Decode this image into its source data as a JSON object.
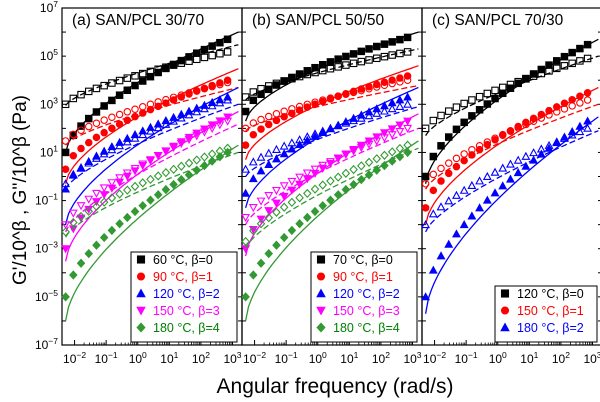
{
  "figure": {
    "ylabel": "G'/10^β , G''/10^β (Pa)",
    "xlabel": "Angular frequency (rad/s)"
  },
  "chart_data": [
    {
      "type": "scatter",
      "title": "(a) SAN/PCL 30/70",
      "xscale": "log",
      "yscale": "log",
      "xlim": [
        0.004,
        2000
      ],
      "ylim": [
        1e-07,
        10000000.0
      ],
      "yticks": [
        "10^-7",
        "10^-5",
        "10^-3",
        "10^-1",
        "10^1",
        "10^3",
        "10^5",
        "10^7"
      ],
      "xticks": [
        "10^-2",
        "10^-1",
        "10^0",
        "10^1",
        "10^2",
        "10^3"
      ],
      "legend_position": "lower-right",
      "series": [
        {
          "name": "60 °C, β=0",
          "label_color": "#000000",
          "color": "#000000",
          "marker": "square",
          "Gp_start": 10,
          "Gp_end": 500000,
          "Gpp_start": 1000,
          "Gpp_end": 150000,
          "fit_start": 10,
          "fit_end": 1000000,
          "fitpp_start": 900,
          "fitpp_end": 300000
        },
        {
          "name": "90 °C, β=1",
          "label_color": "#ff0000",
          "color": "#ff0000",
          "marker": "circle",
          "Gp_start": 2,
          "Gp_end": 10000,
          "Gpp_start": 30,
          "Gpp_end": 8000,
          "fit_start": 0.5,
          "fit_end": 30000,
          "fitpp_start": 20,
          "fitpp_end": 5000
        },
        {
          "name": "120 °C, β=2",
          "label_color": "#0000ff",
          "color": "#0000ff",
          "marker": "triangle-up",
          "Gp_start": 0.3,
          "Gp_end": 2000,
          "Gpp_start": 0.5,
          "Gpp_end": 1500,
          "fit_start": 0.01,
          "fit_end": 5000,
          "fitpp_start": 0.3,
          "fitpp_end": 1000
        },
        {
          "name": "150 °C, β=3",
          "label_color": "#ff00ff",
          "color": "#ff00ff",
          "marker": "triangle-down",
          "Gp_start": 0.001,
          "Gp_end": 300,
          "Gpp_start": 0.01,
          "Gpp_end": 200,
          "fit_start": 0.0003,
          "fit_end": 500,
          "fitpp_start": 0.005,
          "fitpp_end": 150
        },
        {
          "name": "180 °C, β=4",
          "label_color": "#008000",
          "color": "#339933",
          "marker": "diamond",
          "Gp_start": 1e-05,
          "Gp_end": 10,
          "Gpp_start": 0.005,
          "Gpp_end": 15,
          "fit_start": 1e-06,
          "fit_end": 20,
          "fitpp_start": 0.003,
          "fitpp_end": 10
        }
      ]
    },
    {
      "type": "scatter",
      "title": "(b) SAN/PCL 50/50",
      "xscale": "log",
      "yscale": "log",
      "xlim": [
        0.004,
        2000
      ],
      "ylim": [
        1e-07,
        10000000.0
      ],
      "xticks": [
        "10^-2",
        "10^-1",
        "10^0",
        "10^1",
        "10^2",
        "10^3"
      ],
      "legend_position": "lower-right",
      "series": [
        {
          "name": "70 °C, β=0",
          "label_color": "#000000",
          "color": "#000000",
          "marker": "square",
          "Gp_start": 500,
          "Gp_end": 600000,
          "Gpp_start": 2000,
          "Gpp_end": 150000,
          "fit_start": 200,
          "fit_end": 1000000,
          "fitpp_start": 1500,
          "fitpp_end": 200000
        },
        {
          "name": "90 °C, β=1",
          "label_color": "#ff0000",
          "color": "#ff0000",
          "marker": "circle",
          "Gp_start": 20,
          "Gp_end": 15000,
          "Gpp_start": 100,
          "Gpp_end": 10000,
          "fit_start": 5,
          "fit_end": 40000,
          "fitpp_start": 80,
          "fitpp_end": 6000
        },
        {
          "name": "120 °C, β=2",
          "label_color": "#0000ff",
          "color": "#0000ff",
          "marker": "triangle-up",
          "Gp_start": 0.2,
          "Gp_end": 2000,
          "Gpp_start": 2,
          "Gpp_end": 1000,
          "fit_start": 0.05,
          "fit_end": 5000,
          "fitpp_start": 1,
          "fitpp_end": 800
        },
        {
          "name": "150 °C, β=3",
          "label_color": "#ff00ff",
          "color": "#ff00ff",
          "marker": "triangle-down",
          "Gp_start": 0.001,
          "Gp_end": 200,
          "Gpp_start": 0.02,
          "Gpp_end": 100,
          "fit_start": 0.0005,
          "fit_end": 400,
          "fitpp_start": 0.01,
          "fitpp_end": 100
        },
        {
          "name": "180 °C, β=4",
          "label_color": "#008000",
          "color": "#339933",
          "marker": "diamond",
          "Gp_start": 1e-05,
          "Gp_end": 10,
          "Gpp_start": 0.002,
          "Gpp_end": 20,
          "fit_start": 1e-06,
          "fit_end": 30,
          "fitpp_start": 0.001,
          "fitpp_end": 15
        }
      ]
    },
    {
      "type": "scatter",
      "title": "(c) SAN/PCL 70/30",
      "xscale": "log",
      "yscale": "log",
      "xlim": [
        0.004,
        2000
      ],
      "ylim": [
        1e-07,
        10000000.0
      ],
      "xticks": [
        "10^-2",
        "10^-1",
        "10^0",
        "10^1",
        "10^2",
        "10^3"
      ],
      "legend_position": "lower-right",
      "series": [
        {
          "name": "120 °C, β=0",
          "label_color": "#000000",
          "color": "#000000",
          "marker": "square",
          "Gp_start": 1,
          "Gp_end": 300000,
          "Gpp_start": 100,
          "Gpp_end": 80000,
          "fit_start": 0.5,
          "fit_end": 500000,
          "fitpp_start": 50,
          "fitpp_end": 100000
        },
        {
          "name": "150 °C, β=1",
          "label_color": "#ff0000",
          "color": "#ff0000",
          "marker": "circle",
          "Gp_start": 0.05,
          "Gp_end": 3000,
          "Gpp_start": 0.5,
          "Gpp_end": 1500,
          "fit_start": 0.01,
          "fit_end": 5000,
          "fitpp_start": 0.3,
          "fitpp_end": 1000
        },
        {
          "name": "180 °C, β=2",
          "label_color": "#0000ff",
          "color": "#0000ff",
          "marker": "triangle-up",
          "Gp_start": 1e-05,
          "Gp_end": 200,
          "Gpp_start": 0.01,
          "Gpp_end": 100,
          "fit_start": 2e-06,
          "fit_end": 300,
          "fitpp_start": 0.005,
          "fitpp_end": 80
        }
      ]
    }
  ]
}
